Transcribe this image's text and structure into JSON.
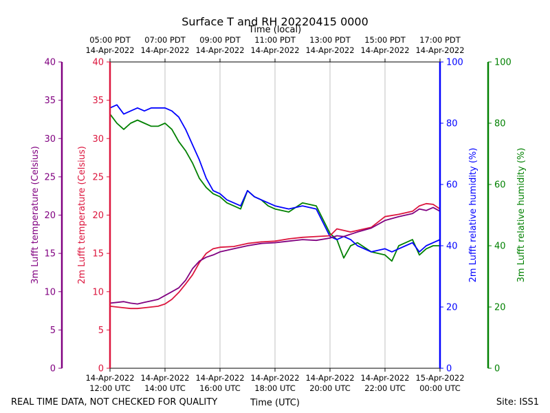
{
  "chart_data": {
    "type": "line",
    "title": "Surface T and RH 20220415 0000",
    "xlabel_top": "Time (local)",
    "xlabel_bottom": "Time (UTC)",
    "xlim_hours_utc": [
      12,
      24
    ],
    "x_ticks_bottom": [
      {
        "hour": 12,
        "date": "14-Apr-2022",
        "time": "12:00 UTC"
      },
      {
        "hour": 14,
        "date": "14-Apr-2022",
        "time": "14:00 UTC"
      },
      {
        "hour": 16,
        "date": "14-Apr-2022",
        "time": "16:00 UTC"
      },
      {
        "hour": 18,
        "date": "14-Apr-2022",
        "time": "18:00 UTC"
      },
      {
        "hour": 20,
        "date": "14-Apr-2022",
        "time": "20:00 UTC"
      },
      {
        "hour": 22,
        "date": "14-Apr-2022",
        "time": "22:00 UTC"
      },
      {
        "hour": 24,
        "date": "15-Apr-2022",
        "time": "00:00 UTC"
      }
    ],
    "x_ticks_top": [
      {
        "hour": 12,
        "time": "05:00 PDT",
        "date": "14-Apr-2022"
      },
      {
        "hour": 14,
        "time": "07:00 PDT",
        "date": "14-Apr-2022"
      },
      {
        "hour": 16,
        "time": "09:00 PDT",
        "date": "14-Apr-2022"
      },
      {
        "hour": 18,
        "time": "11:00 PDT",
        "date": "14-Apr-2022"
      },
      {
        "hour": 20,
        "time": "13:00 PDT",
        "date": "14-Apr-2022"
      },
      {
        "hour": 22,
        "time": "15:00 PDT",
        "date": "14-Apr-2022"
      },
      {
        "hour": 24,
        "time": "17:00 PDT",
        "date": "14-Apr-2022"
      }
    ],
    "axes": [
      {
        "id": "t3m",
        "label": "3m Lufft temperature (Celsius)",
        "color": "#800080",
        "side": "left",
        "ylim": [
          0,
          40
        ],
        "ticks": [
          0,
          5,
          10,
          15,
          20,
          25,
          30,
          35,
          40
        ]
      },
      {
        "id": "t2m",
        "label": "2m Lufft temperature (Celsius)",
        "color": "#dc143c",
        "side": "left",
        "ylim": [
          0,
          40
        ],
        "ticks": [
          0,
          5,
          10,
          15,
          20,
          25,
          30,
          35,
          40
        ]
      },
      {
        "id": "rh2m",
        "label": "2m Lufft relative humidity (%)",
        "color": "#0000ff",
        "side": "right",
        "ylim": [
          0,
          100
        ],
        "ticks": [
          0,
          20,
          40,
          60,
          80,
          100
        ]
      },
      {
        "id": "rh3m",
        "label": "3m Lufft relative humidity (%)",
        "color": "#008000",
        "side": "right",
        "ylim": [
          0,
          100
        ],
        "ticks": [
          0,
          20,
          40,
          60,
          80,
          100
        ]
      }
    ],
    "grid": "vertical",
    "series": [
      {
        "name": "3m temperature",
        "axis": "t3m",
        "color": "#800080",
        "x": [
          12,
          12.25,
          12.5,
          12.75,
          13,
          13.25,
          13.5,
          13.75,
          14,
          14.25,
          14.5,
          14.75,
          15,
          15.25,
          15.5,
          15.75,
          16,
          16.5,
          17,
          17.5,
          18,
          18.5,
          19,
          19.5,
          20,
          20.25,
          20.5,
          20.75,
          21,
          21.5,
          22,
          22.5,
          23,
          23.25,
          23.5,
          23.75,
          24
        ],
        "y": [
          8.5,
          8.6,
          8.7,
          8.5,
          8.4,
          8.6,
          8.8,
          9.0,
          9.5,
          10.0,
          10.5,
          11.5,
          13.0,
          14.0,
          14.5,
          14.8,
          15.2,
          15.6,
          16.0,
          16.3,
          16.4,
          16.6,
          16.8,
          16.7,
          17.0,
          17.3,
          17.2,
          17.5,
          17.8,
          18.3,
          19.3,
          19.8,
          20.2,
          20.8,
          20.6,
          21.0,
          20.5
        ]
      },
      {
        "name": "2m temperature",
        "axis": "t2m",
        "color": "#dc143c",
        "x": [
          12,
          12.25,
          12.5,
          12.75,
          13,
          13.25,
          13.5,
          13.75,
          14,
          14.25,
          14.5,
          14.75,
          15,
          15.25,
          15.5,
          15.75,
          16,
          16.5,
          17,
          17.5,
          18,
          18.5,
          19,
          19.5,
          20,
          20.25,
          20.5,
          20.75,
          21,
          21.5,
          22,
          22.5,
          23,
          23.25,
          23.5,
          23.75,
          24
        ],
        "y": [
          8.1,
          8.0,
          7.9,
          7.8,
          7.8,
          7.9,
          8.0,
          8.1,
          8.4,
          9.0,
          9.9,
          11.0,
          12.2,
          13.8,
          15.0,
          15.6,
          15.8,
          15.9,
          16.3,
          16.5,
          16.6,
          16.9,
          17.1,
          17.2,
          17.3,
          18.2,
          18.0,
          17.8,
          18.0,
          18.4,
          19.8,
          20.1,
          20.5,
          21.2,
          21.5,
          21.4,
          20.8
        ]
      },
      {
        "name": "2m relative humidity",
        "axis": "rh2m",
        "color": "#0000ff",
        "x": [
          12,
          12.25,
          12.5,
          12.75,
          13,
          13.25,
          13.5,
          13.75,
          14,
          14.25,
          14.5,
          14.75,
          15,
          15.25,
          15.5,
          15.75,
          16,
          16.25,
          16.5,
          16.75,
          17,
          17.25,
          17.5,
          17.75,
          18,
          18.5,
          19,
          19.5,
          20,
          20.25,
          20.5,
          20.75,
          21,
          21.5,
          22,
          22.25,
          22.5,
          22.75,
          23,
          23.25,
          23.5,
          23.75,
          24
        ],
        "y": [
          85,
          86,
          83,
          84,
          85,
          84,
          85,
          85,
          85,
          84,
          82,
          78,
          73,
          68,
          62,
          58,
          57,
          55,
          54,
          53,
          58,
          56,
          55,
          54,
          53,
          52,
          53,
          52,
          43,
          42,
          43,
          42,
          40,
          38,
          39,
          38,
          39,
          40,
          41,
          38,
          40,
          41,
          42
        ]
      },
      {
        "name": "3m relative humidity",
        "axis": "rh3m",
        "color": "#008000",
        "x": [
          12,
          12.25,
          12.5,
          12.75,
          13,
          13.25,
          13.5,
          13.75,
          14,
          14.25,
          14.5,
          14.75,
          15,
          15.25,
          15.5,
          15.75,
          16,
          16.25,
          16.5,
          16.75,
          17,
          17.25,
          17.5,
          17.75,
          18,
          18.5,
          19,
          19.5,
          20,
          20.25,
          20.5,
          20.75,
          21,
          21.5,
          22,
          22.25,
          22.5,
          22.75,
          23,
          23.25,
          23.5,
          23.75,
          24
        ],
        "y": [
          83,
          80,
          78,
          80,
          81,
          80,
          79,
          79,
          80,
          78,
          74,
          71,
          67,
          62,
          59,
          57,
          56,
          54,
          53,
          52,
          58,
          56,
          55,
          53,
          52,
          51,
          54,
          53,
          44,
          42,
          36,
          40,
          41,
          38,
          37,
          35,
          40,
          41,
          42,
          37,
          39,
          40,
          40
        ]
      }
    ],
    "footer_left": "REAL TIME DATA, NOT CHECKED FOR QUALITY",
    "footer_right": "Site: ISS1"
  }
}
